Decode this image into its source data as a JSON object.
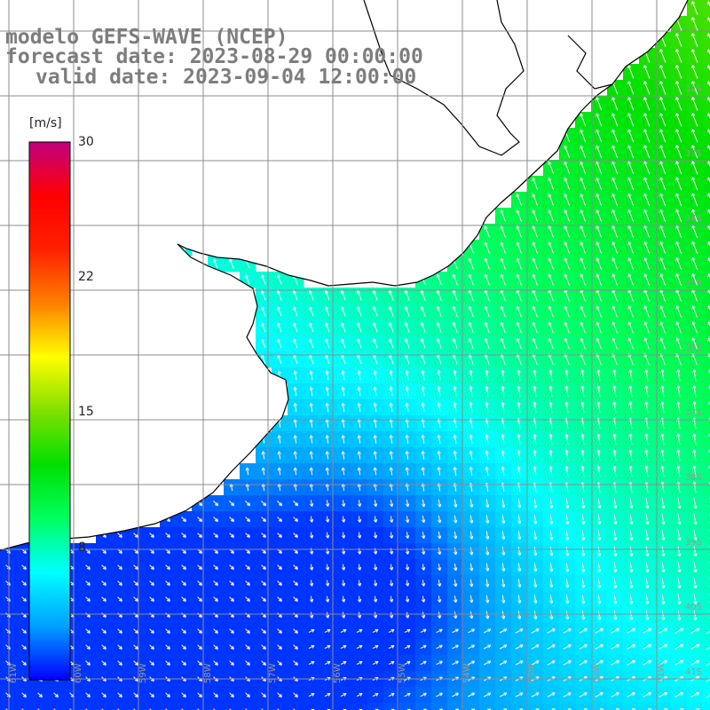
{
  "title": {
    "line1": "modelo GEFS-WAVE (NCEP)",
    "line2": "forecast date: 2023-08-29 00:00:00",
    "line3": "valid date: 2023-09-04 12:00:00"
  },
  "colorbar": {
    "unit": "[m/s]",
    "ticks": [
      "30",
      "22",
      "15",
      "8"
    ],
    "tick_values": [
      30,
      22,
      15,
      8
    ],
    "range": [
      0,
      30
    ],
    "colors": [
      "#0000ff",
      "#00a0ff",
      "#00ffff",
      "#00ff60",
      "#00e000",
      "#80e000",
      "#ffff00",
      "#ff8000",
      "#ff2000",
      "#ff0000",
      "#c00080"
    ]
  },
  "grid": {
    "lon_labels": [
      "61W",
      "60W",
      "59W",
      "58W",
      "57W",
      "56W",
      "55W",
      "54W",
      "53W",
      "52W",
      "51W"
    ],
    "lat_labels": [
      "32S",
      "33S",
      "34S",
      "35S",
      "36S",
      "37S",
      "38S",
      "39S",
      "40S",
      "41S"
    ]
  },
  "colors": {
    "land": "#ffffff",
    "coast": "#000000",
    "grid": "#8c8c8c",
    "title": "#7d7d7d",
    "arrow": "#ffffff"
  },
  "wind_field": {
    "description_units": "m/s",
    "regimes": [
      {
        "zone": "northeast offshore",
        "speed": 12,
        "direction": "from southwest"
      },
      {
        "zone": "central shelf",
        "speed": 9,
        "direction": "from south-southeast"
      },
      {
        "zone": "southwest low",
        "speed": 3,
        "direction": "variable"
      },
      {
        "zone": "south edge",
        "speed": 6,
        "direction": "from west"
      }
    ]
  }
}
